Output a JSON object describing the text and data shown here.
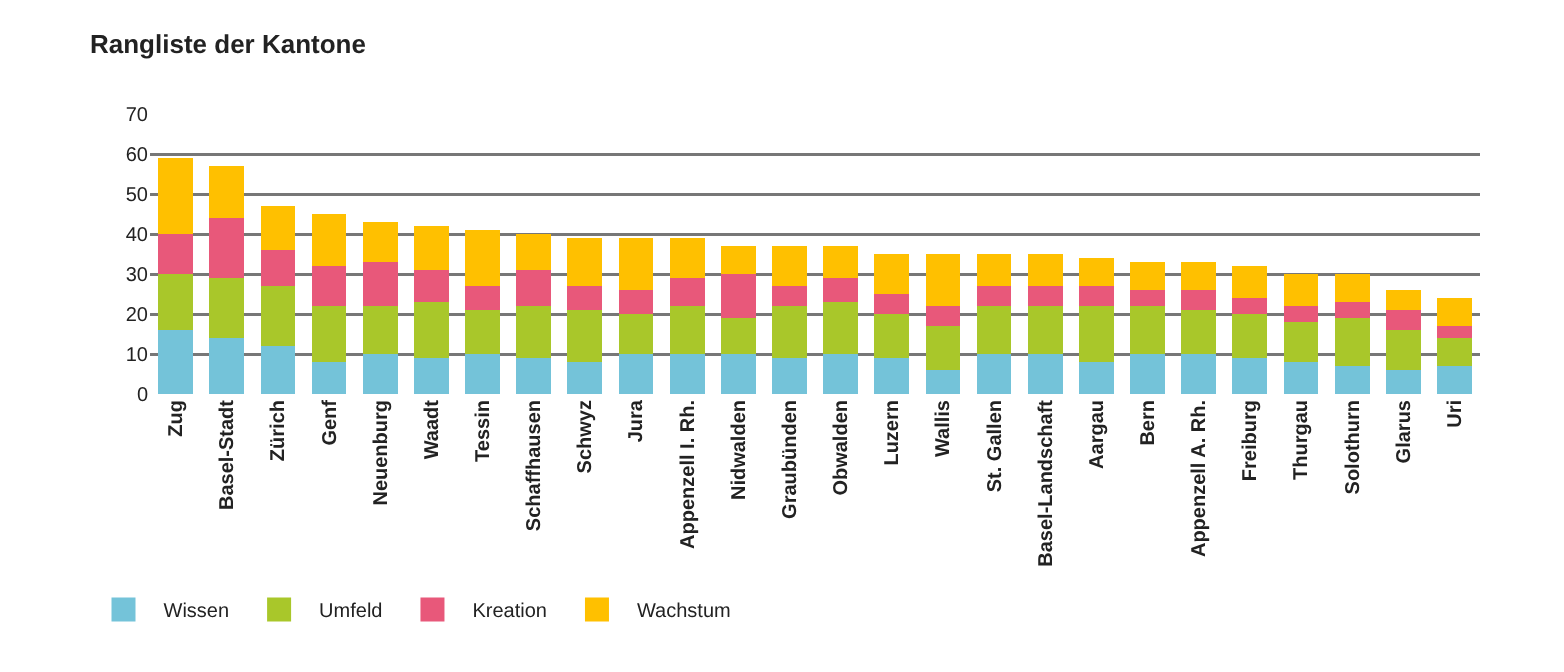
{
  "chart_data": {
    "type": "bar",
    "title": "Rangliste der Kantone",
    "stacked": true,
    "categories": [
      "Zug",
      "Basel-Stadt",
      "Zürich",
      "Genf",
      "Neuenburg",
      "Waadt",
      "Tessin",
      "Schaffhausen",
      "Schwyz",
      "Jura",
      "Appenzell I. Rh.",
      "Nidwalden",
      "Graubünden",
      "Obwalden",
      "Luzern",
      "Wallis",
      "St. Gallen",
      "Basel-Landschaft",
      "Aargau",
      "Bern",
      "Appenzell A. Rh.",
      "Freiburg",
      "Thurgau",
      "Solothurn",
      "Glarus",
      "Uri"
    ],
    "series": [
      {
        "name": "Wissen",
        "color": "#74c3d9",
        "values": [
          16,
          14,
          12,
          8,
          10,
          9,
          10,
          9,
          8,
          10,
          10,
          10,
          9,
          10,
          9,
          6,
          10,
          10,
          8,
          10,
          10,
          9,
          8,
          7,
          6,
          7
        ]
      },
      {
        "name": "Umfeld",
        "color": "#a9c72a",
        "values": [
          14,
          15,
          15,
          14,
          12,
          14,
          11,
          13,
          13,
          10,
          12,
          9,
          13,
          13,
          11,
          11,
          12,
          12,
          14,
          12,
          11,
          11,
          10,
          12,
          10,
          7
        ]
      },
      {
        "name": "Kreation",
        "color": "#e8587a",
        "values": [
          10,
          15,
          9,
          10,
          11,
          8,
          6,
          9,
          6,
          6,
          7,
          11,
          5,
          6,
          5,
          5,
          5,
          5,
          5,
          4,
          5,
          4,
          4,
          4,
          5,
          3
        ]
      },
      {
        "name": "Wachstum",
        "color": "#ffc000",
        "values": [
          19,
          13,
          11,
          13,
          10,
          11,
          14,
          9,
          12,
          13,
          10,
          7,
          10,
          8,
          10,
          13,
          8,
          8,
          7,
          7,
          7,
          8,
          8,
          7,
          5,
          7
        ]
      }
    ],
    "ylim": [
      0,
      70
    ],
    "yticks": [
      0,
      10,
      20,
      30,
      40,
      50,
      60,
      70
    ],
    "grid": "y",
    "legend": "bottom left"
  }
}
